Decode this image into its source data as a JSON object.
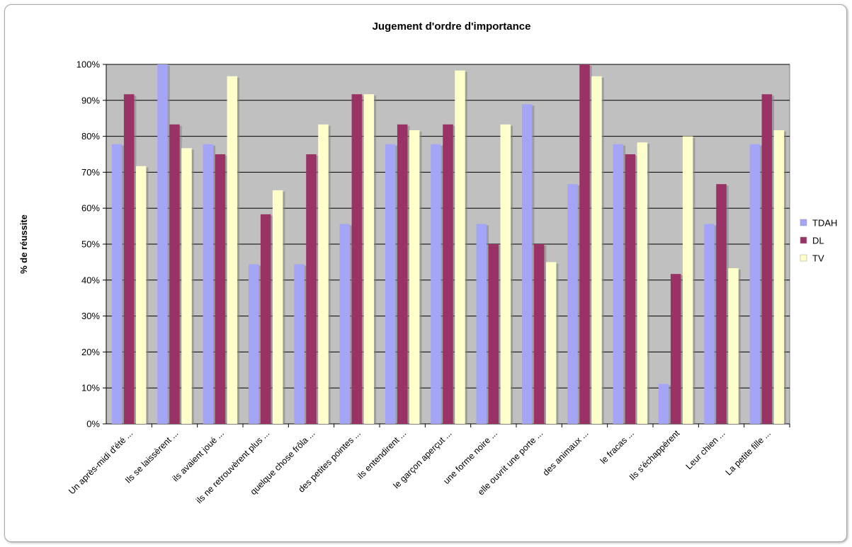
{
  "chart_data": {
    "type": "bar",
    "title": "Jugement d'ordre d'importance",
    "ylabel": "% de réussite",
    "xlabel": "",
    "ylim": [
      0,
      100
    ],
    "yticks": [
      "0%",
      "10%",
      "20%",
      "30%",
      "40%",
      "50%",
      "60%",
      "70%",
      "80%",
      "90%",
      "100%"
    ],
    "grid": true,
    "legend_position": "right",
    "categories": [
      "Un après-midi d'été ...",
      "Ils se laissèrent ...",
      "ils avaient joué ...",
      "ils ne retrouvèrent plus ...",
      "quelque chose frôla ...",
      "des petites pointes ...",
      "ils entendirent ...",
      "le garçon aperçut ...",
      "une forme noire ...",
      "elle ouvrit une porte ...",
      "des animaux ...",
      "le fracas ...",
      "Ils s'échappèrent",
      "Leur chien ...",
      "La petite fille ..."
    ],
    "series": [
      {
        "name": "TDAH",
        "color": "#a5a5f7",
        "values": [
          77.8,
          100,
          77.8,
          44.4,
          44.4,
          55.6,
          77.8,
          77.8,
          55.6,
          88.9,
          66.7,
          77.8,
          11.1,
          55.6,
          77.8
        ]
      },
      {
        "name": "DL",
        "color": "#993366",
        "values": [
          91.7,
          83.3,
          75,
          58.3,
          75,
          91.7,
          83.3,
          83.3,
          50,
          50,
          100,
          75,
          41.7,
          66.7,
          91.7
        ]
      },
      {
        "name": "TV",
        "color": "#ffffcc",
        "values": [
          71.7,
          76.7,
          96.7,
          65,
          83.3,
          91.7,
          81.7,
          98.3,
          83.3,
          45,
          96.7,
          78.3,
          80,
          43.3,
          81.7
        ]
      }
    ],
    "colors": {
      "plot_background": "#c0c0c0",
      "gridline": "#000000"
    }
  }
}
